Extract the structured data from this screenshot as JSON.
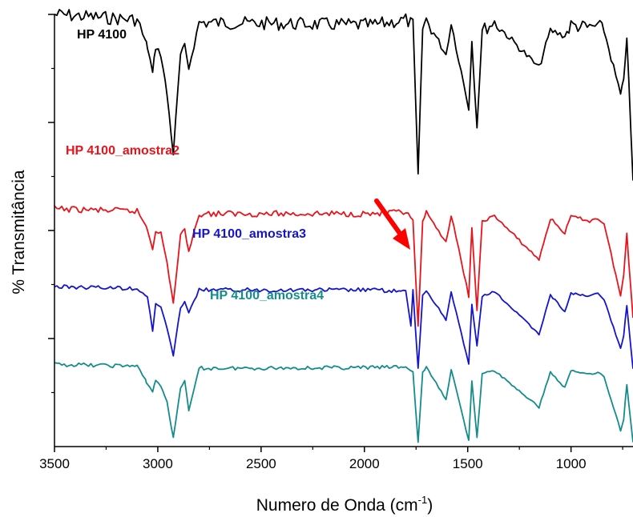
{
  "chart_data": {
    "type": "line",
    "xlabel": "Numero de Onda (cm",
    "xlabel_sup": "-1",
    "xlabel_close": ")",
    "ylabel": "% Transmitância",
    "xlim": [
      3500,
      700
    ],
    "x_reversed": true,
    "xticks": [
      3500,
      3000,
      2500,
      2000,
      1500,
      1000
    ],
    "y_tick_labels_shown": false,
    "grid": false,
    "annotation": {
      "type": "arrow",
      "color": "#ff0000",
      "points_to_x": 1750,
      "series": "HP 4100_amostra3"
    },
    "series": [
      {
        "name": "HP 4100",
        "color": "#000000",
        "baseline": 1.0,
        "depth": 0.62,
        "x": [
          3500,
          3100,
          3060,
          3050,
          3025,
          3010,
          2985,
          2955,
          2925,
          2890,
          2870,
          2850,
          2800,
          1960,
          1800,
          1765,
          1740,
          1718,
          1700,
          1605,
          1580,
          1495,
          1480,
          1455,
          1430,
          1370,
          1155,
          1100,
          1030,
          1000,
          910,
          870,
          840,
          760,
          745,
          730,
          700
        ],
        "y": [
          0.0,
          0.02,
          0.1,
          0.12,
          0.22,
          0.12,
          0.15,
          0.3,
          0.52,
          0.15,
          0.12,
          0.2,
          0.03,
          0.04,
          0.02,
          0.04,
          0.6,
          0.05,
          0.02,
          0.15,
          0.03,
          0.35,
          0.1,
          0.42,
          0.06,
          0.03,
          0.2,
          0.06,
          0.08,
          0.04,
          0.05,
          0.04,
          0.06,
          0.3,
          0.25,
          0.08,
          0.62
        ]
      },
      {
        "name": "HP 4100_amostra2",
        "color": "#e8141c",
        "baseline": 0.55,
        "depth": 0.28,
        "x": [
          3500,
          3100,
          3060,
          3050,
          3025,
          3010,
          2985,
          2955,
          2925,
          2890,
          2870,
          2850,
          2800,
          1960,
          1800,
          1765,
          1740,
          1718,
          1700,
          1605,
          1580,
          1495,
          1480,
          1455,
          1430,
          1370,
          1155,
          1100,
          1030,
          1000,
          910,
          870,
          840,
          760,
          745,
          730,
          700
        ],
        "y": [
          0.0,
          0.02,
          0.13,
          0.17,
          0.33,
          0.18,
          0.2,
          0.45,
          0.78,
          0.22,
          0.17,
          0.35,
          0.04,
          0.04,
          0.03,
          0.1,
          0.98,
          0.1,
          0.04,
          0.27,
          0.05,
          0.72,
          0.16,
          0.85,
          0.1,
          0.06,
          0.42,
          0.08,
          0.2,
          0.06,
          0.1,
          0.08,
          0.12,
          0.72,
          0.55,
          0.2,
          0.9
        ]
      },
      {
        "name": "HP 4100_amostra3",
        "color": "#1414cc",
        "baseline": 0.37,
        "depth": 0.19,
        "x": [
          3500,
          3100,
          3060,
          3050,
          3025,
          3010,
          2985,
          2955,
          2925,
          2890,
          2870,
          2850,
          2800,
          1960,
          1800,
          1775,
          1765,
          1740,
          1718,
          1700,
          1605,
          1580,
          1495,
          1480,
          1455,
          1430,
          1370,
          1155,
          1100,
          1030,
          1000,
          910,
          870,
          840,
          760,
          745,
          730,
          700
        ],
        "y": [
          0.0,
          0.02,
          0.1,
          0.12,
          0.55,
          0.2,
          0.25,
          0.5,
          0.85,
          0.25,
          0.18,
          0.32,
          0.04,
          0.04,
          0.06,
          0.48,
          0.05,
          1.0,
          0.1,
          0.05,
          0.4,
          0.06,
          0.95,
          0.22,
          0.72,
          0.12,
          0.06,
          0.58,
          0.1,
          0.3,
          0.08,
          0.12,
          0.08,
          0.16,
          0.75,
          0.6,
          0.22,
          1.0
        ]
      },
      {
        "name": "HP 4100_amostra4",
        "color": "#148c8c",
        "baseline": 0.19,
        "depth": 0.18,
        "x": [
          3500,
          3100,
          3060,
          3050,
          3025,
          3010,
          2985,
          2955,
          2925,
          2890,
          2870,
          2850,
          2800,
          1960,
          1800,
          1765,
          1740,
          1718,
          1700,
          1605,
          1580,
          1495,
          1480,
          1455,
          1430,
          1370,
          1155,
          1100,
          1030,
          1000,
          910,
          870,
          840,
          760,
          745,
          730,
          700
        ],
        "y": [
          0.0,
          0.02,
          0.2,
          0.25,
          0.35,
          0.2,
          0.28,
          0.48,
          0.95,
          0.3,
          0.2,
          0.6,
          0.05,
          0.04,
          0.03,
          0.1,
          1.0,
          0.1,
          0.04,
          0.45,
          0.06,
          0.98,
          0.2,
          0.95,
          0.12,
          0.08,
          0.55,
          0.1,
          0.3,
          0.08,
          0.12,
          0.1,
          0.16,
          0.85,
          0.7,
          0.25,
          1.0
        ]
      }
    ]
  }
}
